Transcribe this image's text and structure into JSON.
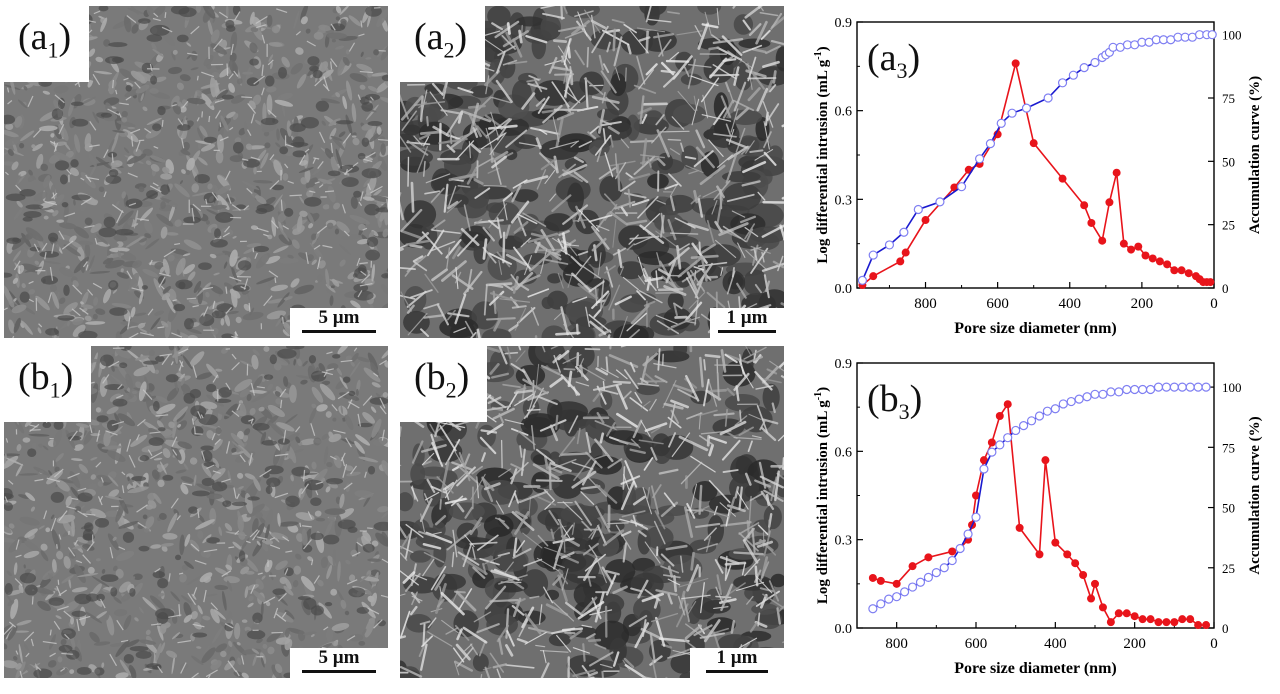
{
  "sem_panels": [
    {
      "id": "a1",
      "label_main": "(a",
      "label_sub": "1",
      "label_end": ")",
      "scale": "5 µm"
    },
    {
      "id": "a2",
      "label_main": "(a",
      "label_sub": "2",
      "label_end": ")",
      "scale": "1 µm"
    },
    {
      "id": "b1",
      "label_main": "(b",
      "label_sub": "1",
      "label_end": ")",
      "scale": "5 µm"
    },
    {
      "id": "b2",
      "label_main": "(b",
      "label_sub": "2",
      "label_end": ")",
      "scale": "1 µm"
    }
  ],
  "colors": {
    "differential": "#e8141b",
    "accumulation": "#1a1acf",
    "accumulation_marker": "#7f7ff2",
    "axis": "#000000"
  },
  "chart_data": [
    {
      "id": "a3",
      "type": "line",
      "panel_label_main": "(a",
      "panel_label_sub": "3",
      "panel_label_end": ")",
      "xlabel": "Pore size diameter (nm)",
      "ylabel": "Log differential intrusion (mL g",
      "ylabel_sup": "-1",
      "ylabel_end": ")",
      "y2label": "Accumulation curve (%)",
      "xlim": [
        990,
        0
      ],
      "ylim": [
        0,
        0.9
      ],
      "y2lim": [
        0,
        105
      ],
      "xticks": [
        800,
        600,
        400,
        200,
        0
      ],
      "yticks": [
        0.0,
        0.3,
        0.6,
        0.9
      ],
      "yticklabels": [
        "0.0",
        "0.3",
        "0.6",
        "0.9"
      ],
      "y2ticks": [
        0,
        25,
        50,
        75,
        100
      ],
      "series": [
        {
          "axis": "left",
          "marker": "filled-circle",
          "x": [
            975,
            945,
            870,
            855,
            800,
            720,
            680,
            650,
            600,
            550,
            500,
            420,
            360,
            340,
            310,
            290,
            270,
            250,
            230,
            210,
            190,
            170,
            150,
            130,
            110,
            90,
            70,
            50,
            40,
            30,
            20,
            10
          ],
          "y": [
            0.01,
            0.04,
            0.09,
            0.12,
            0.23,
            0.34,
            0.4,
            0.42,
            0.52,
            0.76,
            0.49,
            0.37,
            0.28,
            0.22,
            0.16,
            0.29,
            0.39,
            0.15,
            0.13,
            0.14,
            0.11,
            0.1,
            0.09,
            0.08,
            0.06,
            0.06,
            0.05,
            0.04,
            0.03,
            0.02,
            0.02,
            0.02
          ]
        },
        {
          "axis": "right",
          "marker": "open-circle",
          "x": [
            975,
            945,
            900,
            860,
            820,
            760,
            700,
            650,
            620,
            590,
            560,
            520,
            460,
            420,
            390,
            360,
            330,
            310,
            300,
            290,
            280,
            260,
            240,
            220,
            200,
            180,
            160,
            140,
            120,
            100,
            80,
            60,
            40,
            20,
            5
          ],
          "y": [
            3,
            13,
            17,
            22,
            31,
            34,
            40,
            51,
            57,
            65,
            69,
            71,
            75,
            81,
            84,
            87,
            89,
            91,
            92,
            93,
            95,
            95,
            96,
            96,
            97,
            97,
            98,
            98,
            98,
            99,
            99,
            99,
            100,
            100,
            100
          ]
        }
      ]
    },
    {
      "id": "b3",
      "type": "line",
      "panel_label_main": "(b",
      "panel_label_sub": "3",
      "panel_label_end": ")",
      "xlabel": "Pore size diameter (nm)",
      "ylabel": "Log differential intrusion (mL g",
      "ylabel_sup": "-1",
      "ylabel_end": ")",
      "y2label": "Accumulation curve (%)",
      "xlim": [
        900,
        0
      ],
      "ylim": [
        0,
        0.9
      ],
      "y2lim": [
        0,
        110
      ],
      "xticks": [
        800,
        600,
        400,
        200,
        0
      ],
      "yticks": [
        0.0,
        0.3,
        0.6,
        0.9
      ],
      "yticklabels": [
        "0.0",
        "0.3",
        "0.6",
        "0.9"
      ],
      "y2ticks": [
        0,
        25,
        50,
        75,
        100
      ],
      "series": [
        {
          "axis": "left",
          "marker": "filled-circle",
          "x": [
            860,
            840,
            800,
            760,
            720,
            660,
            640,
            620,
            610,
            600,
            580,
            560,
            540,
            520,
            490,
            440,
            425,
            400,
            370,
            350,
            330,
            310,
            300,
            280,
            260,
            240,
            220,
            200,
            180,
            160,
            140,
            120,
            100,
            80,
            60,
            40,
            20
          ],
          "y": [
            0.17,
            0.16,
            0.15,
            0.21,
            0.24,
            0.26,
            0.27,
            0.3,
            0.35,
            0.45,
            0.57,
            0.63,
            0.72,
            0.76,
            0.34,
            0.25,
            0.57,
            0.29,
            0.25,
            0.22,
            0.18,
            0.1,
            0.15,
            0.07,
            0.02,
            0.05,
            0.05,
            0.04,
            0.03,
            0.03,
            0.02,
            0.02,
            0.02,
            0.03,
            0.03,
            0.01,
            0.01
          ]
        },
        {
          "axis": "right",
          "marker": "open-circle",
          "x": [
            860,
            840,
            820,
            800,
            780,
            760,
            740,
            720,
            700,
            680,
            660,
            640,
            620,
            600,
            580,
            560,
            540,
            520,
            500,
            480,
            460,
            440,
            420,
            400,
            380,
            360,
            340,
            320,
            300,
            280,
            260,
            240,
            220,
            200,
            180,
            160,
            140,
            120,
            100,
            80,
            60,
            40,
            20
          ],
          "y": [
            8,
            10,
            12,
            13,
            15,
            17,
            19,
            21,
            23,
            25,
            28,
            33,
            39,
            46,
            66,
            73,
            76,
            79,
            82,
            84,
            86,
            88,
            90,
            91,
            93,
            94,
            95,
            96,
            97,
            97,
            98,
            98,
            99,
            99,
            99,
            99,
            100,
            100,
            100,
            100,
            100,
            100,
            100
          ]
        }
      ]
    }
  ]
}
